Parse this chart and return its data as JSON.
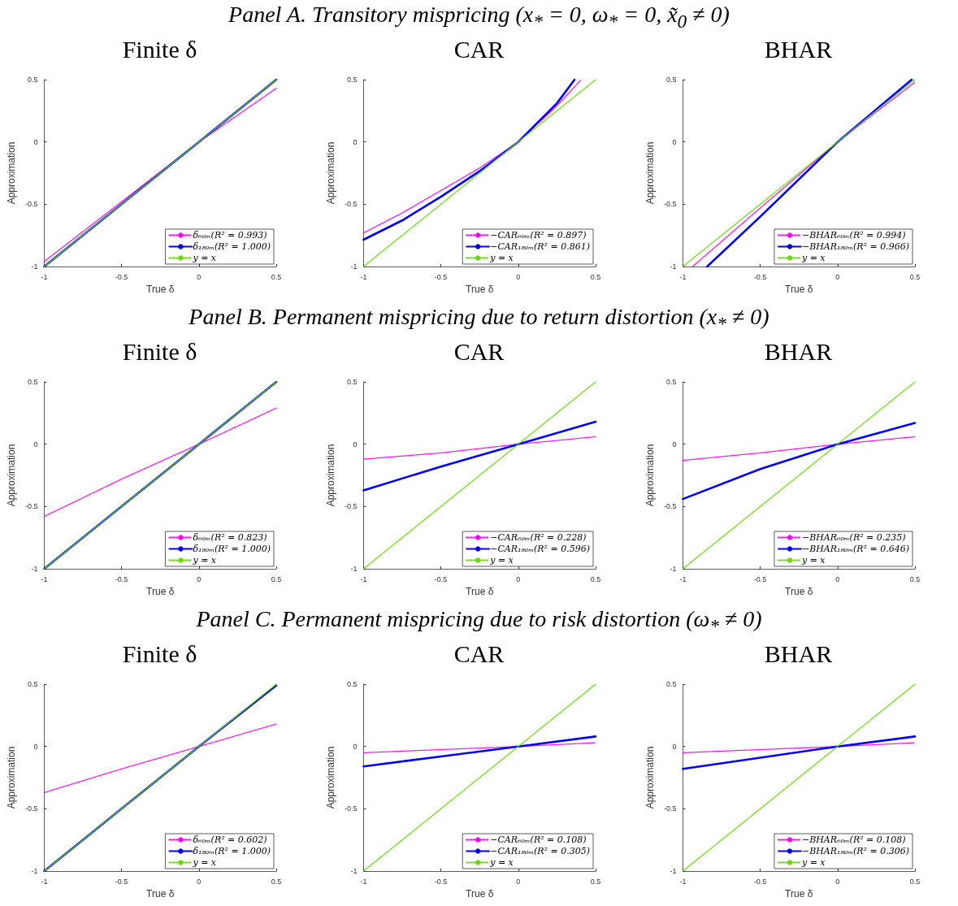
{
  "chart_data": [
    {
      "type": "line",
      "title": "Finite δ",
      "annotations": [
        "Panel A. Transitory mispricing (x$_{*}$ = 0, ω$_{*}$ = 0, x̃$_{0}$ ≠ 0)"
      ],
      "xlabel": "True δ",
      "ylabel": "Approximation",
      "xlim": [
        -1,
        0.5
      ],
      "ylim": [
        -1,
        0.5
      ],
      "xticks": [
        -1,
        -0.5,
        0,
        0.5
      ],
      "yticks": [
        -1,
        -0.5,
        0,
        0.5
      ],
      "grid": false,
      "legend": "bottom right",
      "x": [
        -1,
        -0.5,
        0,
        0.5
      ],
      "series": [
        {
          "name": "δ₆₀ₘ(R² = 0.993)",
          "color": "#ff00ff",
          "line_style": "dotted",
          "values": [
            -0.96,
            -0.48,
            0,
            0.43
          ]
        },
        {
          "name": "δ₁₈₀ₘ(R² = 1.000)",
          "color": "#0000ff",
          "line_style": "solid",
          "values": [
            -1,
            -0.5,
            0,
            0.5
          ]
        },
        {
          "name": "y = x",
          "color": "#66dd00",
          "line_style": "dotted",
          "values": [
            -1,
            -0.5,
            0,
            0.5
          ]
        }
      ]
    },
    {
      "type": "line",
      "title": "CAR",
      "xlabel": "True δ",
      "ylabel": "Approximation",
      "xlim": [
        -1,
        0.5
      ],
      "ylim": [
        -1,
        0.5
      ],
      "xticks": [
        -1,
        -0.5,
        0,
        0.5
      ],
      "yticks": [
        -1,
        -0.5,
        0,
        0.5
      ],
      "grid": false,
      "legend": "bottom right",
      "x": [
        -1,
        -0.5,
        0,
        0.5
      ],
      "series": [
        {
          "name": "−CAR₆₀ₘ(R² = 0.897)",
          "color": "#ff00ff",
          "line_style": "dotted",
          "x": [
            -1,
            -0.75,
            -0.5,
            -0.25,
            0,
            0.25,
            0.407
          ],
          "values": [
            -0.73,
            -0.57,
            -0.39,
            -0.21,
            0,
            0.29,
            0.5
          ]
        },
        {
          "name": "−CAR₁₈₀ₘ(R² = 0.861)",
          "color": "#0000ff",
          "line_style": "solid",
          "x": [
            -1,
            -0.75,
            -0.5,
            -0.25,
            0,
            0.25,
            0.364
          ],
          "values": [
            -0.785,
            -0.63,
            -0.44,
            -0.235,
            0,
            0.31,
            0.5
          ]
        },
        {
          "name": "y = x",
          "color": "#66dd00",
          "line_style": "dotted",
          "values": [
            -1,
            -0.5,
            0,
            0.5
          ]
        }
      ]
    },
    {
      "type": "line",
      "title": "BHAR",
      "xlabel": "True δ",
      "ylabel": "Approximation",
      "xlim": [
        -1,
        0.5
      ],
      "ylim": [
        -1,
        0.5
      ],
      "xticks": [
        -1,
        -0.5,
        0,
        0.5
      ],
      "yticks": [
        -1,
        -0.5,
        0,
        0.5
      ],
      "grid": false,
      "legend": "bottom right",
      "x": [
        -1,
        -0.5,
        0,
        0.5
      ],
      "series": [
        {
          "name": "−BHAR₆₀ₘ(R² = 0.994)",
          "color": "#ff00ff",
          "line_style": "dotted",
          "x": [
            -0.937,
            -0.5,
            0,
            0.5
          ],
          "values": [
            -1,
            -0.53,
            0,
            0.48
          ]
        },
        {
          "name": "−BHAR₁₈₀ₘ(R² = 0.966)",
          "color": "#0000ff",
          "line_style": "solid",
          "x": [
            -0.843,
            -0.5,
            0,
            0.479
          ],
          "values": [
            -1,
            -0.6,
            0,
            0.5
          ]
        },
        {
          "name": "y = x",
          "color": "#66dd00",
          "line_style": "dotted",
          "values": [
            -1,
            -0.5,
            0,
            0.5
          ]
        }
      ]
    },
    {
      "type": "line",
      "title": "Finite δ",
      "annotations": [
        "Panel B. Permanent mispricing due to return distortion (x$_{*}$ ≠ 0)"
      ],
      "xlabel": "True δ",
      "ylabel": "Approximation",
      "xlim": [
        -1,
        0.5
      ],
      "ylim": [
        -1,
        0.5
      ],
      "xticks": [
        -1,
        -0.5,
        0,
        0.5
      ],
      "yticks": [
        -1,
        -0.5,
        0,
        0.5
      ],
      "grid": false,
      "legend": "bottom right",
      "x": [
        -1,
        -0.5,
        0,
        0.5
      ],
      "series": [
        {
          "name": "δ₆₀ₘ(R² = 0.823)",
          "color": "#ff00ff",
          "line_style": "dotted",
          "values": [
            -0.58,
            -0.28,
            0,
            0.29
          ]
        },
        {
          "name": "δ₁₈₀ₘ(R² = 1.000)",
          "color": "#0000ff",
          "line_style": "solid",
          "values": [
            -1,
            -0.5,
            0,
            0.5
          ]
        },
        {
          "name": "y = x",
          "color": "#66dd00",
          "line_style": "dotted",
          "values": [
            -1,
            -0.5,
            0,
            0.5
          ]
        }
      ]
    },
    {
      "type": "line",
      "title": "CAR",
      "xlabel": "True δ",
      "ylabel": "Approximation",
      "xlim": [
        -1,
        0.5
      ],
      "ylim": [
        -1,
        0.5
      ],
      "xticks": [
        -1,
        -0.5,
        0,
        0.5
      ],
      "yticks": [
        -1,
        -0.5,
        0,
        0.5
      ],
      "grid": false,
      "legend": "bottom right",
      "x": [
        -1,
        -0.5,
        0,
        0.5
      ],
      "series": [
        {
          "name": "−CAR₆₀ₘ(R² = 0.228)",
          "color": "#ff00ff",
          "line_style": "dotted",
          "values": [
            -0.12,
            -0.07,
            0,
            0.06
          ]
        },
        {
          "name": "−CAR₁₈₀ₘ(R² = 0.596)",
          "color": "#0000ff",
          "line_style": "solid",
          "values": [
            -0.37,
            -0.18,
            0,
            0.18
          ]
        },
        {
          "name": "y = x",
          "color": "#66dd00",
          "line_style": "dotted",
          "values": [
            -1,
            -0.5,
            0,
            0.5
          ]
        }
      ]
    },
    {
      "type": "line",
      "title": "BHAR",
      "xlabel": "True δ",
      "ylabel": "Approximation",
      "xlim": [
        -1,
        0.5
      ],
      "ylim": [
        -1,
        0.5
      ],
      "xticks": [
        -1,
        -0.5,
        0,
        0.5
      ],
      "yticks": [
        -1,
        -0.5,
        0,
        0.5
      ],
      "grid": false,
      "legend": "bottom right",
      "x": [
        -1,
        -0.5,
        0,
        0.5
      ],
      "series": [
        {
          "name": "−BHAR₆₀ₘ(R² = 0.235)",
          "color": "#ff00ff",
          "line_style": "dotted",
          "values": [
            -0.13,
            -0.07,
            0,
            0.06
          ]
        },
        {
          "name": "−BHAR₁₈₀ₘ(R² = 0.646)",
          "color": "#0000ff",
          "line_style": "solid",
          "values": [
            -0.44,
            -0.2,
            0,
            0.17
          ]
        },
        {
          "name": "y = x",
          "color": "#66dd00",
          "line_style": "dotted",
          "values": [
            -1,
            -0.5,
            0,
            0.5
          ]
        }
      ]
    },
    {
      "type": "line",
      "title": "Finite δ",
      "annotations": [
        "Panel C. Permanent mispricing due to risk distortion (ω$_{*}$ ≠ 0)"
      ],
      "xlabel": "True δ",
      "ylabel": "Approximation",
      "xlim": [
        -1,
        0.5
      ],
      "ylim": [
        -1,
        0.5
      ],
      "xticks": [
        -1,
        -0.5,
        0,
        0.5
      ],
      "yticks": [
        -1,
        -0.5,
        0,
        0.5
      ],
      "grid": false,
      "legend": "bottom right",
      "x": [
        -1,
        -0.5,
        0,
        0.5
      ],
      "series": [
        {
          "name": "δ₆₀ₘ(R² = 0.602)",
          "color": "#ff00ff",
          "line_style": "dotted",
          "values": [
            -0.37,
            -0.18,
            0,
            0.18
          ]
        },
        {
          "name": "δ₁₈₀ₘ(R² = 1.000)",
          "color": "#0000ff",
          "line_style": "solid",
          "values": [
            -1,
            -0.5,
            0,
            0.49
          ]
        },
        {
          "name": "y = x",
          "color": "#66dd00",
          "line_style": "dotted",
          "values": [
            -1,
            -0.5,
            0,
            0.5
          ]
        }
      ]
    },
    {
      "type": "line",
      "title": "CAR",
      "xlabel": "True δ",
      "ylabel": "Approximation",
      "xlim": [
        -1,
        0.5
      ],
      "ylim": [
        -1,
        0.5
      ],
      "xticks": [
        -1,
        -0.5,
        0,
        0.5
      ],
      "yticks": [
        -1,
        -0.5,
        0,
        0.5
      ],
      "grid": false,
      "legend": "bottom right",
      "x": [
        -1,
        -0.5,
        0,
        0.5
      ],
      "series": [
        {
          "name": "−CAR₆₀ₘ(R² = 0.108)",
          "color": "#ff00ff",
          "line_style": "dotted",
          "values": [
            -0.05,
            -0.025,
            0,
            0.03
          ]
        },
        {
          "name": "−CAR₁₈₀ₘ(R² = 0.305)",
          "color": "#0000ff",
          "line_style": "solid",
          "values": [
            -0.16,
            -0.08,
            0,
            0.08
          ]
        },
        {
          "name": "y = x",
          "color": "#66dd00",
          "line_style": "dotted",
          "values": [
            -1,
            -0.5,
            0,
            0.5
          ]
        }
      ]
    },
    {
      "type": "line",
      "title": "BHAR",
      "xlabel": "True δ",
      "ylabel": "Approximation",
      "xlim": [
        -1,
        0.5
      ],
      "ylim": [
        -1,
        0.5
      ],
      "xticks": [
        -1,
        -0.5,
        0,
        0.5
      ],
      "yticks": [
        -1,
        -0.5,
        0,
        0.5
      ],
      "grid": false,
      "legend": "bottom right",
      "x": [
        -1,
        -0.5,
        0,
        0.5
      ],
      "series": [
        {
          "name": "−BHAR₆₀ₘ(R² = 0.108)",
          "color": "#ff00ff",
          "line_style": "dotted",
          "values": [
            -0.05,
            -0.025,
            0,
            0.03
          ]
        },
        {
          "name": "−BHAR₁₈₀ₘ(R² = 0.306)",
          "color": "#0000ff",
          "line_style": "solid",
          "values": [
            -0.18,
            -0.09,
            0,
            0.08
          ]
        },
        {
          "name": "y = x",
          "color": "#66dd00",
          "line_style": "dotted",
          "values": [
            -1,
            -0.5,
            0,
            0.5
          ]
        }
      ]
    }
  ]
}
